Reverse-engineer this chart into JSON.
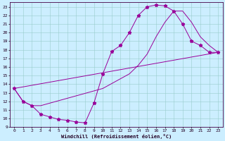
{
  "xlabel": "Windchill (Refroidissement éolien,°C)",
  "bg_color": "#cceeff",
  "line_color": "#990099",
  "xlim": [
    -0.5,
    23.5
  ],
  "ylim": [
    9,
    23.5
  ],
  "xticks": [
    0,
    1,
    2,
    3,
    4,
    5,
    6,
    7,
    8,
    9,
    10,
    11,
    12,
    13,
    14,
    15,
    16,
    17,
    18,
    19,
    20,
    21,
    22,
    23
  ],
  "yticks": [
    9,
    10,
    11,
    12,
    13,
    14,
    15,
    16,
    17,
    18,
    19,
    20,
    21,
    22,
    23
  ],
  "line_star": {
    "x": [
      0,
      1,
      2,
      3,
      4,
      5,
      6,
      7,
      8,
      9,
      10,
      11,
      12,
      13,
      14,
      15,
      16,
      17,
      18,
      19,
      20,
      21,
      22,
      23
    ],
    "y": [
      13.5,
      12.0,
      11.5,
      10.5,
      10.2,
      9.9,
      9.8,
      9.6,
      9.5,
      11.8,
      15.2,
      17.8,
      18.5,
      20.0,
      22.0,
      23.0,
      23.2,
      23.1,
      22.5,
      21.0,
      19.0,
      18.5,
      17.7,
      17.7
    ]
  },
  "line_straight": {
    "x": [
      0,
      23
    ],
    "y": [
      13.5,
      17.7
    ]
  },
  "line_upper": {
    "x": [
      0,
      1,
      2,
      3,
      10,
      13,
      14,
      15,
      16,
      17,
      18,
      19,
      20,
      21,
      22,
      23
    ],
    "y": [
      13.5,
      12.0,
      11.5,
      11.5,
      13.5,
      15.2,
      16.2,
      17.5,
      19.5,
      21.2,
      22.5,
      22.5,
      21.2,
      19.5,
      18.5,
      17.7
    ]
  }
}
